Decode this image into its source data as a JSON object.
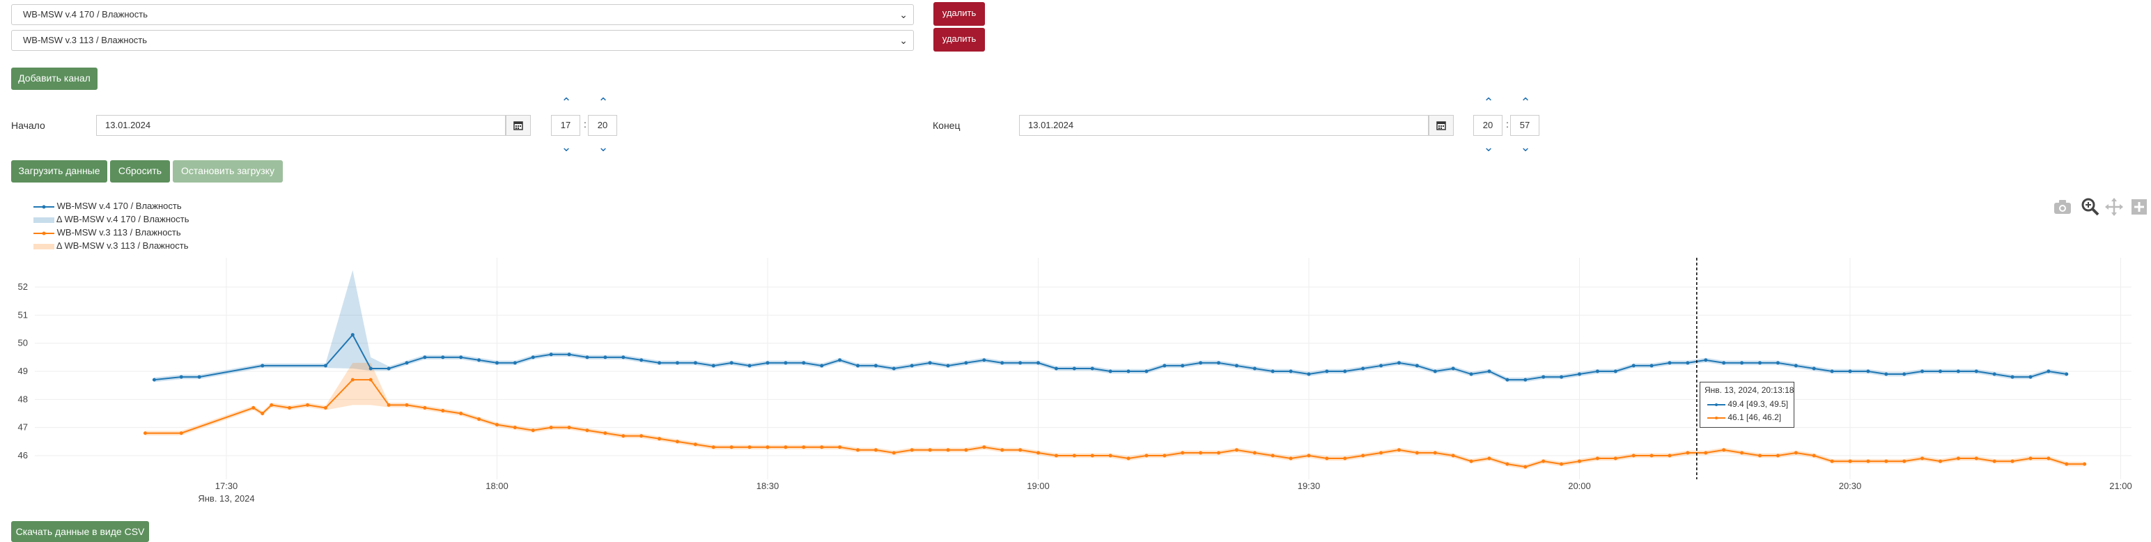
{
  "channels": [
    {
      "label": "WB-MSW v.4 170 / Влажность",
      "delete_label": "удалить"
    },
    {
      "label": "WB-MSW v.3 113 / Влажность",
      "delete_label": "удалить"
    }
  ],
  "add_channel_label": "Добавить канал",
  "start": {
    "label": "Начало",
    "date": "13.01.2024",
    "hour": "17",
    "minute": "20"
  },
  "end": {
    "label": "Конец",
    "date": "13.01.2024",
    "hour": "20",
    "minute": "57"
  },
  "actions": {
    "load": "Загрузить данные",
    "reset": "Сбросить",
    "stop": "Остановить загрузку"
  },
  "download_csv": "Скачать данные в виде CSV",
  "colors": {
    "blue": "#1f77b4",
    "orange": "#ff7f0e",
    "delete": "#a6192e",
    "green": "#5c8f5c"
  },
  "icons": {
    "calendar": "calendar-icon",
    "camera": "camera-icon",
    "zoom": "zoom-icon",
    "pan": "pan-icon",
    "plus": "plus-icon"
  },
  "tooltip": {
    "title": "Янв. 13, 2024, 20:13:18",
    "rows": [
      "49.4 [49.3, 49.5]",
      "46.1 [46, 46.2]"
    ]
  },
  "chart_data": {
    "type": "line",
    "x_axis": {
      "ticks": [
        "17:30",
        "18:00",
        "18:30",
        "19:00",
        "19:30",
        "20:00",
        "20:30",
        "21:00"
      ],
      "date_label": "Янв. 13, 2024"
    },
    "y_axis": {
      "ticks": [
        46,
        47,
        48,
        49,
        50,
        51,
        52
      ],
      "ylim": [
        45.4,
        52.8
      ]
    },
    "grid": true,
    "legend_position": "top-left",
    "legend": [
      "WB-MSW v.4 170 / Влажность",
      "Δ WB-MSW v.4 170 / Влажность",
      "WB-MSW v.3 113 / Влажность",
      "Δ WB-MSW v.3 113 / Влажность"
    ],
    "series": [
      {
        "name": "WB-MSW v.4 170 / Влажность",
        "color": "#1f77b4",
        "x": [
          "17:22",
          "17:25",
          "17:27",
          "17:34",
          "17:41",
          "17:44",
          "17:46",
          "17:48",
          "17:50",
          "17:52",
          "17:54",
          "17:56",
          "17:58",
          "18:00",
          "18:02",
          "18:04",
          "18:06",
          "18:08",
          "18:10",
          "18:12",
          "18:14",
          "18:16",
          "18:18",
          "18:20",
          "18:22",
          "18:24",
          "18:26",
          "18:28",
          "18:30",
          "18:32",
          "18:34",
          "18:36",
          "18:38",
          "18:40",
          "18:42",
          "18:44",
          "18:46",
          "18:48",
          "18:50",
          "18:52",
          "18:54",
          "18:56",
          "18:58",
          "19:00",
          "19:02",
          "19:04",
          "19:06",
          "19:08",
          "19:10",
          "19:12",
          "19:14",
          "19:16",
          "19:18",
          "19:20",
          "19:22",
          "19:24",
          "19:26",
          "19:28",
          "19:30",
          "19:32",
          "19:34",
          "19:36",
          "19:38",
          "19:40",
          "19:42",
          "19:44",
          "19:46",
          "19:48",
          "19:50",
          "19:52",
          "19:54",
          "19:56",
          "19:58",
          "20:00",
          "20:02",
          "20:04",
          "20:06",
          "20:08",
          "20:10",
          "20:12",
          "20:14",
          "20:16",
          "20:18",
          "20:20",
          "20:22",
          "20:24",
          "20:26",
          "20:28",
          "20:30",
          "20:32",
          "20:34",
          "20:36",
          "20:38",
          "20:40",
          "20:42",
          "20:44",
          "20:46",
          "20:48",
          "20:50",
          "20:52",
          "20:54"
        ],
        "y": [
          48.7,
          48.8,
          48.8,
          49.2,
          49.2,
          50.3,
          49.1,
          49.1,
          49.3,
          49.5,
          49.5,
          49.5,
          49.4,
          49.3,
          49.3,
          49.5,
          49.6,
          49.6,
          49.5,
          49.5,
          49.5,
          49.4,
          49.3,
          49.3,
          49.3,
          49.2,
          49.3,
          49.2,
          49.3,
          49.3,
          49.3,
          49.2,
          49.4,
          49.2,
          49.2,
          49.1,
          49.2,
          49.3,
          49.2,
          49.3,
          49.4,
          49.3,
          49.3,
          49.3,
          49.1,
          49.1,
          49.1,
          49.0,
          49.0,
          49.0,
          49.2,
          49.2,
          49.3,
          49.3,
          49.2,
          49.1,
          49.0,
          49.0,
          48.9,
          49.0,
          49.0,
          49.1,
          49.2,
          49.3,
          49.2,
          49.0,
          49.1,
          48.9,
          49.0,
          48.7,
          48.7,
          48.8,
          48.8,
          48.9,
          49.0,
          49.0,
          49.2,
          49.2,
          49.3,
          49.3,
          49.4,
          49.3,
          49.3,
          49.3,
          49.3,
          49.2,
          49.1,
          49.0,
          49.0,
          49.0,
          48.9,
          48.9,
          49.0,
          49.0,
          49.0,
          49.0,
          48.9,
          48.8,
          48.8,
          49.0,
          48.9
        ]
      },
      {
        "name": "WB-MSW v.3 113 / Влажность",
        "color": "#ff7f0e",
        "x": [
          "17:21",
          "17:25",
          "17:33",
          "17:34",
          "17:35",
          "17:37",
          "17:39",
          "17:41",
          "17:44",
          "17:46",
          "17:48",
          "17:50",
          "17:52",
          "17:54",
          "17:56",
          "17:58",
          "18:00",
          "18:02",
          "18:04",
          "18:06",
          "18:08",
          "18:10",
          "18:12",
          "18:14",
          "18:16",
          "18:18",
          "18:20",
          "18:22",
          "18:24",
          "18:26",
          "18:28",
          "18:30",
          "18:32",
          "18:34",
          "18:36",
          "18:38",
          "18:40",
          "18:42",
          "18:44",
          "18:46",
          "18:48",
          "18:50",
          "18:52",
          "18:54",
          "18:56",
          "18:58",
          "19:00",
          "19:02",
          "19:04",
          "19:06",
          "19:08",
          "19:10",
          "19:12",
          "19:14",
          "19:16",
          "19:18",
          "19:20",
          "19:22",
          "19:24",
          "19:26",
          "19:28",
          "19:30",
          "19:32",
          "19:34",
          "19:36",
          "19:38",
          "19:40",
          "19:42",
          "19:44",
          "19:46",
          "19:48",
          "19:50",
          "19:52",
          "19:54",
          "19:56",
          "19:58",
          "20:00",
          "20:02",
          "20:04",
          "20:06",
          "20:08",
          "20:10",
          "20:12",
          "20:14",
          "20:16",
          "20:18",
          "20:20",
          "20:22",
          "20:24",
          "20:26",
          "20:28",
          "20:30",
          "20:32",
          "20:34",
          "20:36",
          "20:38",
          "20:40",
          "20:42",
          "20:44",
          "20:46",
          "20:48",
          "20:50",
          "20:52",
          "20:54",
          "20:56"
        ],
        "y": [
          46.8,
          46.8,
          47.7,
          47.5,
          47.8,
          47.7,
          47.8,
          47.7,
          48.7,
          48.7,
          47.8,
          47.8,
          47.7,
          47.6,
          47.5,
          47.3,
          47.1,
          47.0,
          46.9,
          47.0,
          47.0,
          46.9,
          46.8,
          46.7,
          46.7,
          46.6,
          46.5,
          46.4,
          46.3,
          46.3,
          46.3,
          46.3,
          46.3,
          46.3,
          46.3,
          46.3,
          46.2,
          46.2,
          46.1,
          46.2,
          46.2,
          46.2,
          46.2,
          46.3,
          46.2,
          46.2,
          46.1,
          46.0,
          46.0,
          46.0,
          46.0,
          45.9,
          46.0,
          46.0,
          46.1,
          46.1,
          46.1,
          46.2,
          46.1,
          46.0,
          45.9,
          46.0,
          45.9,
          45.9,
          46.0,
          46.1,
          46.2,
          46.1,
          46.1,
          46.0,
          45.8,
          45.9,
          45.7,
          45.6,
          45.8,
          45.7,
          45.8,
          45.9,
          45.9,
          46.0,
          46.0,
          46.0,
          46.1,
          46.1,
          46.2,
          46.1,
          46.0,
          46.0,
          46.1,
          46.0,
          45.8,
          45.8,
          45.8,
          45.8,
          45.8,
          45.9,
          45.8,
          45.9,
          45.9,
          45.8,
          45.8,
          45.9,
          45.9,
          45.7,
          45.7
        ]
      }
    ],
    "bands": [
      {
        "name": "Δ WB-MSW v.4 170 / Влажность",
        "color": "#1f77b4"
      },
      {
        "name": "Δ WB-MSW v.3 113 / Влажность",
        "color": "#ff7f0e"
      }
    ]
  }
}
